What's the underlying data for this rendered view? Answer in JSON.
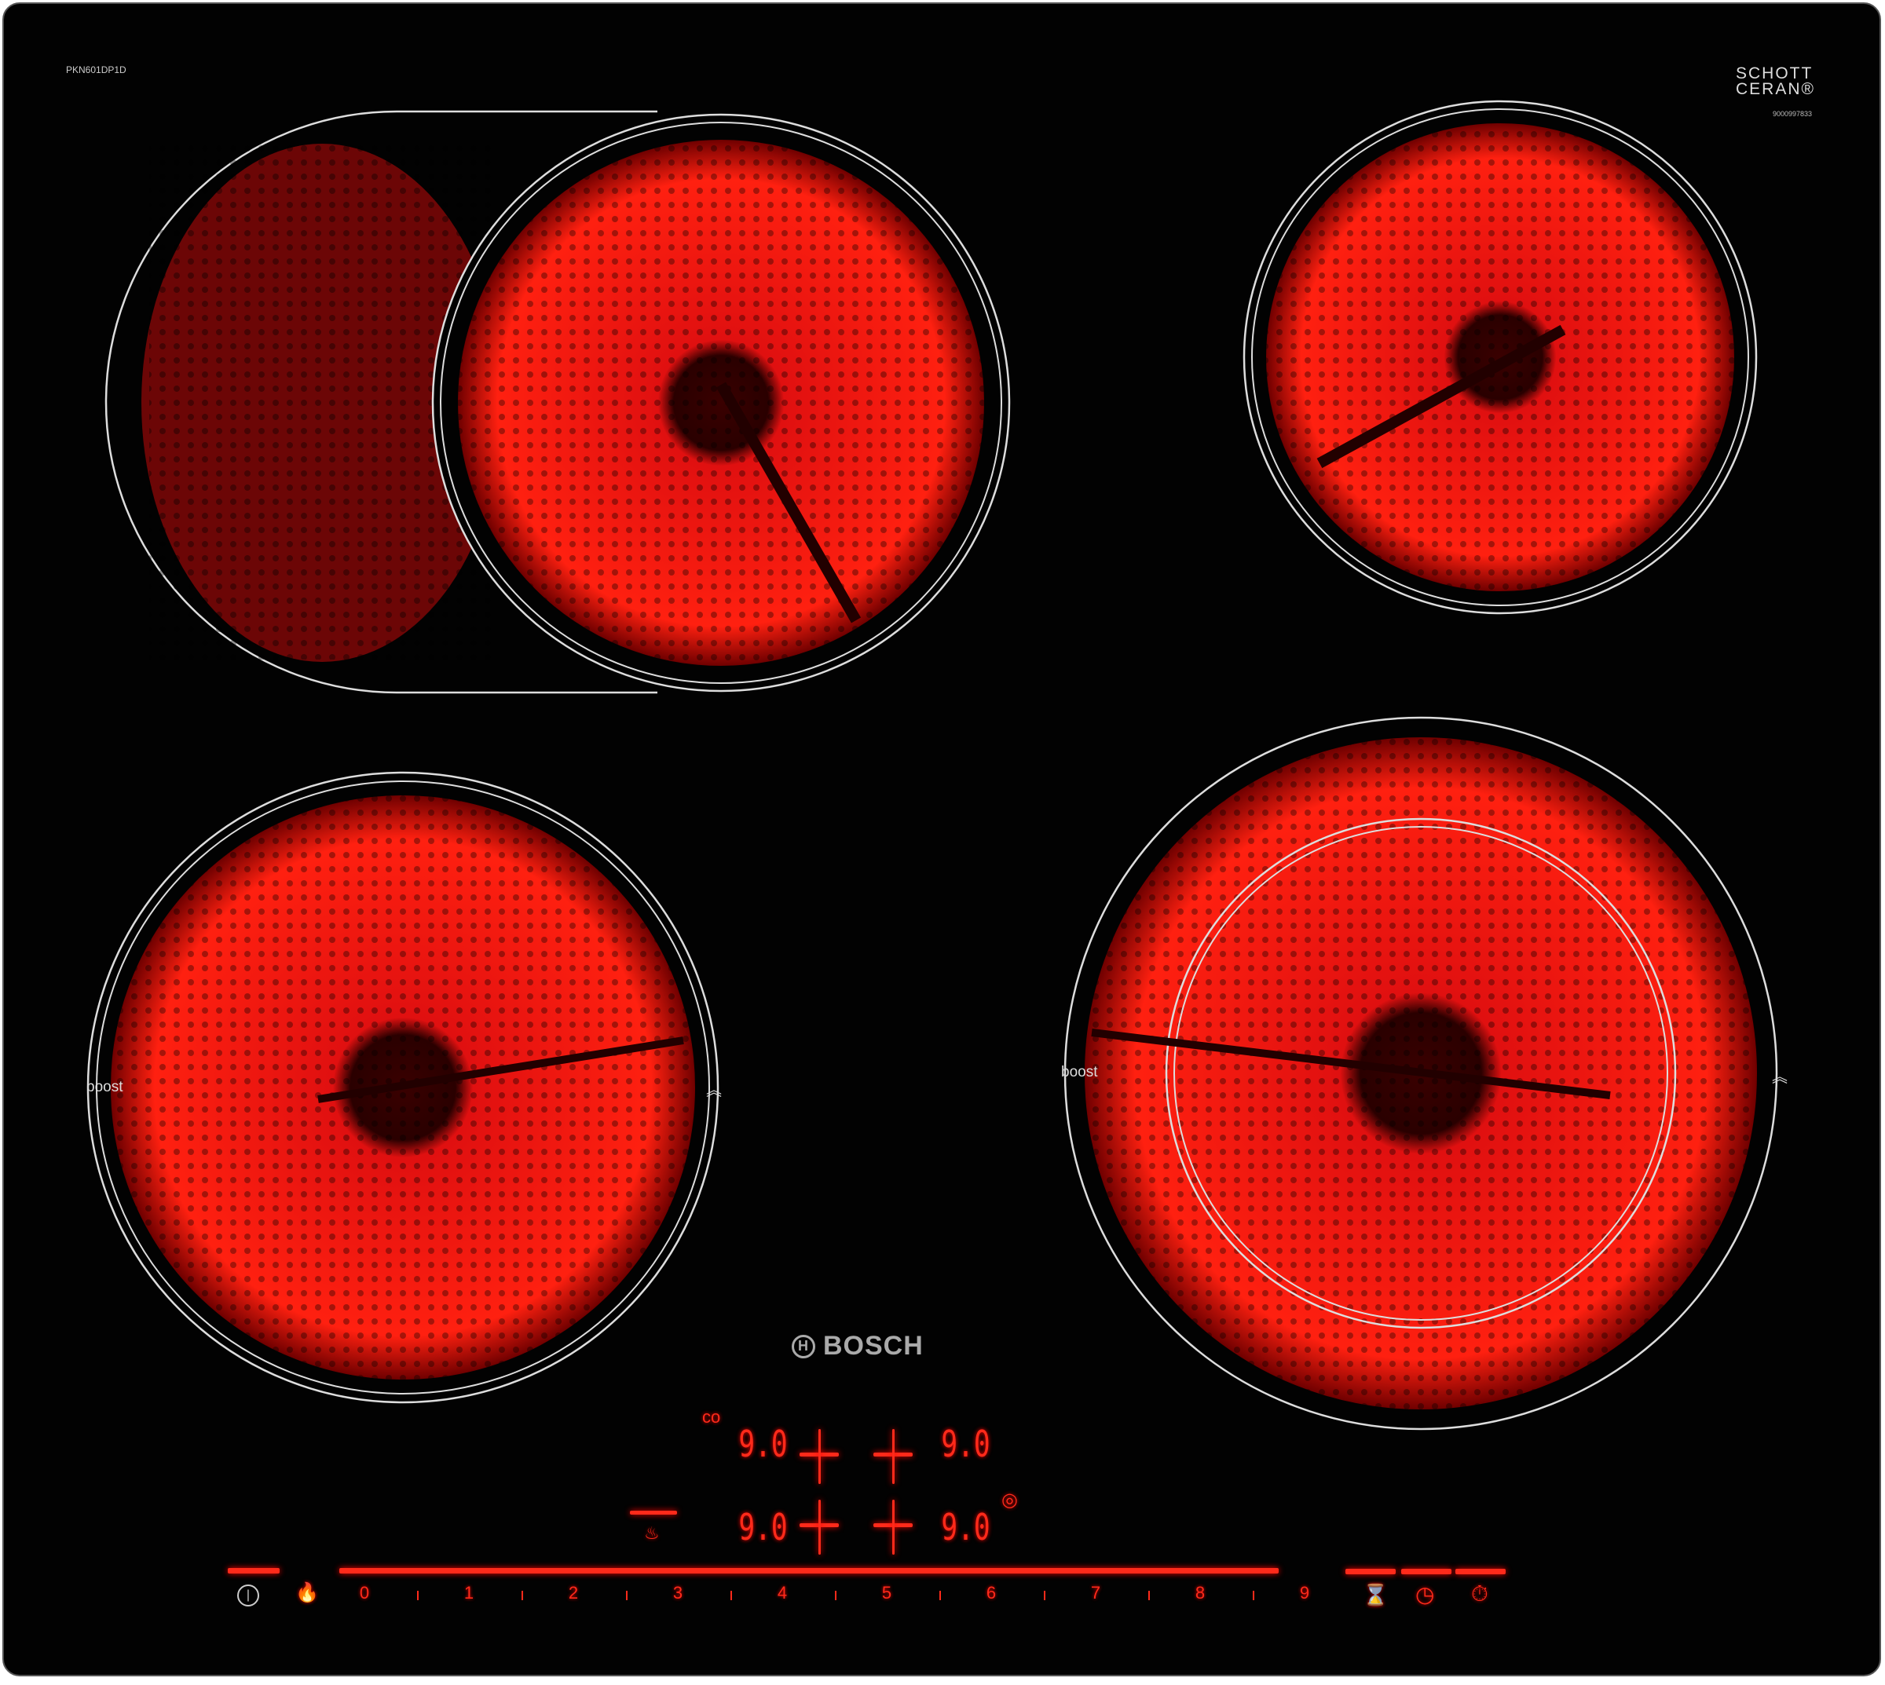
{
  "hob": {
    "model": "PKN601DP1D",
    "glass_brand_line1": "SCHOTT",
    "glass_brand_line2": "CERAN®",
    "serial": "9000997833",
    "brand": "BOSCH",
    "boost_left": "boost",
    "boost_right": "boost",
    "accent_color": "#ff2a1a"
  },
  "displays": {
    "front_left": "9.0",
    "rear_left": "9.0",
    "rear_right": "9.0",
    "front_right": "9.0"
  },
  "controls": {
    "power_icon": "power-icon",
    "child_lock_icon": "child-lock-icon",
    "slider_labels": [
      "0",
      "1",
      "2",
      "3",
      "4",
      "5",
      "6",
      "7",
      "8",
      "9"
    ],
    "timer_icons": [
      "hourglass-icon",
      "clock-icon",
      "stopwatch-icon"
    ]
  }
}
